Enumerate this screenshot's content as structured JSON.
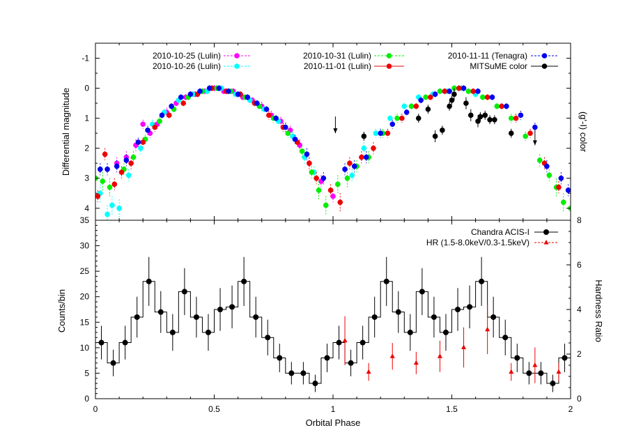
{
  "chart_data": [
    {
      "type": "scatter",
      "panel": "top",
      "title": "",
      "xlabel": "",
      "ylabel": "Differential magnitude",
      "y2label": "(g'-I) color",
      "xlim": [
        0,
        2
      ],
      "ylim": [
        4.4,
        -1.5
      ],
      "y_inverted": true,
      "xticks": [
        0,
        0.5,
        1,
        1.5,
        2
      ],
      "yticks": [
        -1,
        0,
        1,
        2,
        3,
        4
      ],
      "ytick_labels": [
        "-1",
        "0",
        "1",
        "2",
        "3",
        "4"
      ],
      "legend_placement": "top",
      "arrows": [
        {
          "x": 1.01,
          "y_tip": 1.5
        },
        {
          "x": 1.85,
          "y_tip": 1.9
        }
      ],
      "model": "mag = 1.78 * (1 - cos(2*pi*phase))",
      "series": [
        {
          "name": "2010-10-25 (Lulin)",
          "color": "#ff00ff",
          "line_color": "#ff00ff",
          "phases": [
            0.09,
            0.13,
            0.17,
            0.2,
            0.23,
            0.26,
            0.3,
            0.34,
            0.38,
            0.42,
            0.46,
            0.5,
            0.54,
            0.58,
            0.62,
            0.66,
            0.7,
            0.74,
            0.78,
            0.82,
            0.86,
            0.9,
            0.95,
            1.0
          ],
          "y": [
            2.5,
            2.3,
            1.9,
            1.2,
            1.5,
            1.2,
            0.8,
            0.5,
            0.3,
            0.2,
            0.1,
            0.0,
            0.1,
            0.1,
            0.3,
            0.4,
            0.6,
            0.9,
            1.1,
            1.4,
            1.9,
            2.5,
            3.1,
            3.6
          ],
          "err": [
            0.2,
            0.2,
            0.2,
            0.15,
            0.15,
            0.15,
            0.15,
            0.1,
            0.1,
            0.1,
            0.1,
            0.1,
            0.1,
            0.1,
            0.1,
            0.1,
            0.15,
            0.15,
            0.15,
            0.15,
            0.2,
            0.2,
            0.2,
            0.2
          ]
        },
        {
          "name": "2010-10-26 (Lulin)",
          "color": "#00ffff",
          "line_color": "#00ffff",
          "phases": [
            0.02,
            0.05,
            0.07,
            0.1,
            0.14,
            0.19,
            0.24,
            0.29,
            0.35,
            0.41,
            0.47,
            0.53,
            0.59,
            0.65,
            0.71,
            0.77,
            0.83,
            0.88,
            0.92,
            1.08,
            1.13,
            1.18,
            1.24,
            1.3,
            1.36,
            1.42,
            1.48,
            1.54,
            1.6
          ],
          "y": [
            3.5,
            4.2,
            3.9,
            4.0,
            2.9,
            2.0,
            1.2,
            0.8,
            0.4,
            0.2,
            0.1,
            0.0,
            0.2,
            0.4,
            0.7,
            1.1,
            1.6,
            2.3,
            2.8,
            2.9,
            2.0,
            1.5,
            1.0,
            0.6,
            0.3,
            0.2,
            0.1,
            0.0,
            0.2
          ],
          "err": [
            0.3,
            0.3,
            0.3,
            0.3,
            0.2,
            0.2,
            0.15,
            0.1,
            0.1,
            0.1,
            0.1,
            0.1,
            0.1,
            0.1,
            0.1,
            0.15,
            0.15,
            0.2,
            0.2,
            0.2,
            0.2,
            0.15,
            0.1,
            0.1,
            0.1,
            0.1,
            0.1,
            0.1,
            0.1
          ]
        },
        {
          "name": "2010-10-31 (Lulin)",
          "color": "#00ee00",
          "line_color": "#00ee00",
          "phases": [
            0.0,
            0.03,
            0.06,
            0.12,
            0.16,
            0.21,
            0.27,
            0.33,
            0.39,
            0.45,
            0.51,
            0.57,
            0.63,
            0.69,
            0.75,
            0.81,
            0.87,
            0.91,
            0.94,
            0.97,
            1.02,
            1.06,
            1.1,
            1.15,
            1.21,
            1.27,
            1.33,
            1.39,
            1.45,
            1.51,
            1.57,
            1.63,
            1.69,
            1.75,
            1.81,
            1.87,
            1.91,
            1.94,
            1.97,
            2.0
          ],
          "y": [
            3.0,
            3.1,
            3.3,
            2.7,
            2.3,
            1.7,
            1.1,
            0.7,
            0.3,
            0.1,
            0.0,
            0.1,
            0.3,
            0.6,
            1.0,
            1.5,
            2.1,
            2.8,
            3.4,
            3.9,
            3.2,
            3.0,
            2.6,
            2.3,
            1.5,
            1.0,
            0.6,
            0.3,
            0.1,
            0.0,
            0.1,
            0.3,
            0.6,
            1.0,
            1.6,
            2.4,
            2.9,
            3.3,
            3.8,
            4.0
          ],
          "err": [
            0.3,
            0.3,
            0.3,
            0.2,
            0.2,
            0.15,
            0.15,
            0.1,
            0.1,
            0.1,
            0.1,
            0.1,
            0.1,
            0.1,
            0.15,
            0.15,
            0.2,
            0.2,
            0.3,
            0.3,
            0.3,
            0.3,
            0.2,
            0.2,
            0.15,
            0.15,
            0.1,
            0.1,
            0.1,
            0.1,
            0.1,
            0.1,
            0.1,
            0.15,
            0.15,
            0.2,
            0.2,
            0.3,
            0.3,
            0.3
          ]
        },
        {
          "name": "2010-11-01 (Lulin)",
          "color": "#ee0000",
          "line_color": "#ee0000",
          "phases": [
            0.01,
            0.04,
            0.08,
            0.11,
            0.15,
            0.2,
            0.25,
            0.31,
            0.37,
            0.43,
            0.49,
            0.55,
            0.61,
            0.67,
            0.73,
            0.79,
            0.85,
            0.9,
            0.93,
            0.99,
            1.03,
            1.07,
            1.12,
            1.17,
            1.23,
            1.29,
            1.35,
            1.41,
            1.47,
            1.53,
            1.59,
            1.65,
            1.71,
            1.77,
            1.83,
            1.89,
            1.95
          ],
          "y": [
            3.6,
            2.2,
            3.2,
            2.8,
            2.5,
            1.8,
            1.3,
            0.9,
            0.5,
            0.2,
            0.0,
            0.1,
            0.2,
            0.5,
            0.9,
            1.3,
            1.8,
            2.5,
            3.0,
            3.4,
            3.8,
            2.5,
            2.3,
            2.0,
            1.5,
            1.0,
            0.6,
            0.3,
            0.1,
            0.0,
            0.1,
            0.3,
            0.6,
            1.0,
            1.5,
            2.5,
            3.3
          ],
          "err": [
            0.2,
            0.2,
            0.2,
            0.2,
            0.2,
            0.15,
            0.15,
            0.1,
            0.1,
            0.1,
            0.1,
            0.1,
            0.1,
            0.1,
            0.15,
            0.15,
            0.15,
            0.2,
            0.2,
            0.2,
            0.3,
            0.2,
            0.2,
            0.2,
            0.15,
            0.15,
            0.1,
            0.1,
            0.1,
            0.1,
            0.1,
            0.1,
            0.1,
            0.15,
            0.15,
            0.2,
            0.2
          ]
        },
        {
          "name": "2010-11-11 (Tenagra)",
          "color": "#0000ee",
          "line_color": "#0000ee",
          "phases": [
            0.02,
            0.05,
            0.09,
            0.13,
            0.18,
            0.22,
            0.28,
            0.32,
            0.36,
            0.4,
            0.44,
            0.48,
            0.52,
            0.56,
            0.6,
            0.64,
            0.68,
            0.72,
            0.76,
            0.8,
            0.84,
            0.89,
            0.96,
            1.05,
            1.09,
            1.14,
            1.2,
            1.25,
            1.31,
            1.37,
            1.43,
            1.49,
            1.55,
            1.61,
            1.67,
            1.73,
            1.79,
            1.85,
            1.9,
            1.96,
            1.99
          ],
          "y": [
            2.7,
            2.7,
            2.6,
            2.4,
            1.8,
            1.4,
            0.9,
            0.6,
            0.3,
            0.2,
            0.1,
            0.0,
            0.0,
            0.1,
            0.2,
            0.3,
            0.5,
            0.7,
            1.0,
            1.3,
            1.7,
            2.2,
            3.0,
            2.7,
            2.6,
            2.3,
            1.5,
            1.2,
            0.8,
            0.4,
            0.2,
            0.1,
            0.0,
            0.1,
            0.3,
            0.6,
            0.9,
            1.3,
            2.6,
            3.0,
            3.4
          ],
          "err": [
            0.2,
            0.2,
            0.2,
            0.2,
            0.15,
            0.15,
            0.1,
            0.1,
            0.1,
            0.1,
            0.1,
            0.1,
            0.1,
            0.1,
            0.1,
            0.1,
            0.1,
            0.1,
            0.1,
            0.15,
            0.15,
            0.2,
            0.2,
            0.2,
            0.2,
            0.2,
            0.15,
            0.15,
            0.1,
            0.1,
            0.1,
            0.1,
            0.1,
            0.1,
            0.1,
            0.1,
            0.15,
            0.15,
            0.2,
            0.2,
            0.2
          ]
        },
        {
          "name": "MITSuME color",
          "color": "#000000",
          "line_color": "#000000",
          "phases": [
            1.13,
            1.36,
            1.4,
            1.43,
            1.46,
            1.49,
            1.5,
            1.51,
            1.56,
            1.58,
            1.61,
            1.62,
            1.64,
            1.66,
            1.68,
            1.75
          ],
          "y": [
            1.6,
            1.0,
            0.7,
            1.6,
            1.4,
            0.6,
            0.4,
            0.2,
            0.5,
            0.9,
            1.1,
            0.95,
            0.9,
            1.05,
            1.05,
            1.5
          ],
          "err": [
            0.15,
            0.15,
            0.15,
            0.2,
            0.15,
            0.15,
            0.15,
            0.2,
            0.2,
            0.2,
            0.2,
            0.15,
            0.15,
            0.15,
            0.15,
            0.15
          ]
        }
      ]
    },
    {
      "type": "line",
      "panel": "bottom",
      "title": "",
      "xlabel": "Orbital Phase",
      "ylabel": "Counts/bin",
      "y2label": "Hardness Ratio",
      "xlim": [
        0,
        2
      ],
      "ylim": [
        0,
        35
      ],
      "y2lim": [
        0,
        8
      ],
      "xticks": [
        0,
        0.5,
        1,
        1.5,
        2
      ],
      "xtick_labels": [
        "0",
        "0.5",
        "1",
        "1.5",
        "2"
      ],
      "yticks": [
        0,
        5,
        10,
        15,
        20,
        25,
        30,
        35
      ],
      "ytick_labels": [
        "0",
        "5",
        "10",
        "15",
        "20",
        "25",
        "30",
        "35"
      ],
      "y2ticks": [
        0,
        2,
        4,
        6,
        8
      ],
      "y2tick_labels": [
        "0",
        "2",
        "4",
        "6",
        "8"
      ],
      "legend_placement": "top-right",
      "series": [
        {
          "name": "Chandra ACIS-I",
          "color": "#000000",
          "step": true,
          "bin_width": 0.05,
          "x": [
            0.025,
            0.075,
            0.125,
            0.175,
            0.225,
            0.275,
            0.325,
            0.375,
            0.425,
            0.475,
            0.525,
            0.575,
            0.625,
            0.675,
            0.725,
            0.775,
            0.825,
            0.875,
            0.925,
            0.975,
            1.025,
            1.075,
            1.125,
            1.175,
            1.225,
            1.275,
            1.325,
            1.375,
            1.425,
            1.475,
            1.525,
            1.575,
            1.625,
            1.675,
            1.725,
            1.775,
            1.825,
            1.875,
            1.925,
            1.975
          ],
          "values": [
            11,
            7,
            11,
            16,
            23,
            17,
            13,
            21,
            16,
            13,
            17.5,
            18,
            23,
            16,
            12,
            8,
            5,
            5,
            3,
            8,
            11,
            7,
            11,
            16,
            23,
            17,
            13,
            21,
            16,
            13,
            17.5,
            18,
            23,
            16,
            12,
            8,
            5,
            5,
            3,
            8
          ],
          "err": [
            3.3,
            2.6,
            3.3,
            4.0,
            4.8,
            4.1,
            3.6,
            4.6,
            4.0,
            3.6,
            4.2,
            4.2,
            4.8,
            4.0,
            3.5,
            2.8,
            2.2,
            2.2,
            1.7,
            2.8,
            3.3,
            2.6,
            3.3,
            4.0,
            4.8,
            4.1,
            3.6,
            4.6,
            4.0,
            3.6,
            4.2,
            4.2,
            4.8,
            4.0,
            3.5,
            2.8,
            2.2,
            2.2,
            1.7,
            2.8
          ]
        },
        {
          "name": "HR (1.5-8.0keV/0.3-1.5keV)",
          "color": "#ee0000",
          "axis": "y2",
          "x": [
            1.05,
            1.15,
            1.25,
            1.35,
            1.45,
            1.55,
            1.65,
            1.75,
            1.85,
            1.95
          ],
          "values": [
            2.6,
            1.2,
            1.9,
            1.6,
            1.9,
            2.3,
            3.1,
            1.2,
            1.5,
            1.2
          ],
          "err": [
            1.1,
            0.4,
            0.6,
            0.5,
            0.7,
            0.9,
            1.1,
            0.4,
            0.8,
            0.4
          ]
        }
      ]
    }
  ]
}
